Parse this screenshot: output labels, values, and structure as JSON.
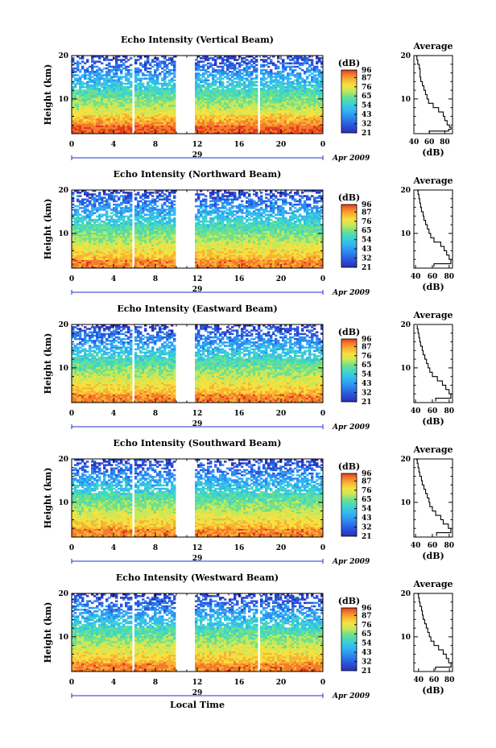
{
  "chart_data": [
    {
      "type": "heatmap",
      "title": "Echo Intensity (Vertical Beam)",
      "ylabel": "Height (km)",
      "yticks": [
        "10",
        "20"
      ],
      "ylim": [
        2,
        20
      ],
      "xticks": [
        "0",
        "4",
        "8",
        "12",
        "16",
        "20",
        "0"
      ],
      "xlim": [
        0,
        24
      ],
      "day_label": "29",
      "month_label": "Apr 2009",
      "data_gaps_hours": [
        [
          5.8,
          6.05
        ],
        [
          9.9,
          11.7
        ],
        [
          17.85,
          18.1
        ]
      ],
      "colorbar": {
        "unit": "(dB)",
        "ticks": [
          "96",
          "87",
          "76",
          "65",
          "54",
          "43",
          "32",
          "21"
        ],
        "range": [
          21,
          96
        ]
      },
      "profile": {
        "title": "Average",
        "xlabel": "(dB)",
        "xticks": [
          "40",
          "60",
          "80"
        ],
        "xlim": [
          40,
          90
        ],
        "yticks": [
          "10",
          "20"
        ],
        "ylim": [
          2,
          20
        ],
        "height_km": [
          2.2,
          2.6,
          3.0,
          3.5,
          4.0,
          5.0,
          6.0,
          7.0,
          8.0,
          9.0,
          10.0,
          11.0,
          12.0,
          13.0,
          14.0,
          15.0,
          16.0,
          17.0,
          18.0,
          19.0,
          19.8
        ],
        "db": [
          60,
          85,
          88,
          86,
          83,
          80,
          78,
          72,
          65,
          59,
          57,
          55,
          53,
          51,
          49,
          48,
          48,
          47,
          45,
          44,
          43
        ]
      }
    },
    {
      "type": "heatmap",
      "title": "Echo Intensity (Northward Beam)",
      "ylabel": "Height (km)",
      "yticks": [
        "10",
        "20"
      ],
      "ylim": [
        2,
        20
      ],
      "xticks": [
        "0",
        "4",
        "8",
        "12",
        "16",
        "20",
        "0"
      ],
      "xlim": [
        0,
        24
      ],
      "day_label": "29",
      "month_label": "Apr 2009",
      "data_gaps_hours": [
        [
          5.8,
          6.05
        ],
        [
          9.9,
          11.7
        ]
      ],
      "colorbar": {
        "unit": "(dB)",
        "ticks": [
          "96",
          "87",
          "76",
          "65",
          "54",
          "43",
          "32",
          "21"
        ],
        "range": [
          21,
          96
        ]
      },
      "profile": {
        "title": "Average",
        "xlabel": "(dB)",
        "xticks": [
          "40",
          "60",
          "80"
        ],
        "xlim": [
          38,
          84
        ],
        "yticks": [
          "10",
          "20"
        ],
        "ylim": [
          2,
          20
        ],
        "height_km": [
          2.3,
          3.0,
          4.0,
          5.0,
          6.0,
          7.0,
          8.0,
          9.0,
          10.0,
          11.0,
          12.0,
          13.0,
          14.0,
          15.0,
          16.0,
          17.0,
          18.0,
          19.0,
          19.8
        ],
        "db": [
          62,
          82,
          80,
          77,
          74,
          70,
          62,
          58,
          56,
          54,
          52,
          50,
          49,
          47,
          46,
          45,
          44,
          43,
          42
        ]
      }
    },
    {
      "type": "heatmap",
      "title": "Echo Intensity (Eastward Beam)",
      "ylabel": "Height (km)",
      "yticks": [
        "10",
        "20"
      ],
      "ylim": [
        2,
        20
      ],
      "xticks": [
        "0",
        "4",
        "8",
        "12",
        "16",
        "20",
        "0"
      ],
      "xlim": [
        0,
        24
      ],
      "day_label": "29",
      "month_label": "Apr 2009",
      "data_gaps_hours": [
        [
          5.8,
          6.05
        ],
        [
          9.9,
          11.7
        ]
      ],
      "colorbar": {
        "unit": "(dB)",
        "ticks": [
          "96",
          "87",
          "76",
          "65",
          "54",
          "43",
          "32",
          "21"
        ],
        "range": [
          21,
          96
        ]
      },
      "profile": {
        "title": "Average",
        "xlabel": "(dB)",
        "xticks": [
          "40",
          "60",
          "80"
        ],
        "xlim": [
          38,
          84
        ],
        "yticks": [
          "10",
          "20"
        ],
        "ylim": [
          2,
          20
        ],
        "height_km": [
          2.3,
          3.0,
          4.0,
          5.0,
          6.0,
          7.0,
          8.0,
          9.0,
          10.0,
          11.0,
          12.0,
          13.0,
          14.0,
          15.0,
          16.0,
          17.0,
          18.0,
          19.0,
          19.8
        ],
        "db": [
          64,
          82,
          80,
          76,
          72,
          66,
          60,
          57,
          55,
          53,
          51,
          49,
          48,
          46,
          45,
          44,
          43,
          42,
          42
        ]
      }
    },
    {
      "type": "heatmap",
      "title": "Echo Intensity (Southward Beam)",
      "ylabel": "Height (km)",
      "yticks": [
        "10",
        "20"
      ],
      "ylim": [
        2,
        20
      ],
      "xticks": [
        "0",
        "4",
        "8",
        "12",
        "16",
        "20",
        "0"
      ],
      "xlim": [
        0,
        24
      ],
      "day_label": "29",
      "month_label": "Apr 2009",
      "data_gaps_hours": [
        [
          5.8,
          6.05
        ],
        [
          9.9,
          11.7
        ]
      ],
      "colorbar": {
        "unit": "(dB)",
        "ticks": [
          "96",
          "87",
          "76",
          "65",
          "54",
          "43",
          "32",
          "21"
        ],
        "range": [
          21,
          96
        ]
      },
      "profile": {
        "title": "Average",
        "xlabel": "(dB)",
        "xticks": [
          "40",
          "60",
          "80"
        ],
        "xlim": [
          38,
          84
        ],
        "yticks": [
          "10",
          "20"
        ],
        "ylim": [
          2,
          20
        ],
        "height_km": [
          2.3,
          3.0,
          4.0,
          5.0,
          6.0,
          7.0,
          8.0,
          9.0,
          10.0,
          11.0,
          12.0,
          13.0,
          14.0,
          15.0,
          16.0,
          17.0,
          18.0,
          19.0,
          19.8
        ],
        "db": [
          65,
          82,
          79,
          73,
          70,
          64,
          60,
          57,
          56,
          54,
          52,
          50,
          48,
          47,
          45,
          44,
          43,
          42,
          41
        ]
      }
    },
    {
      "type": "heatmap",
      "title": "Echo Intensity (Westward Beam)",
      "ylabel": "Height (km)",
      "yticks": [
        "10",
        "20"
      ],
      "ylim": [
        2,
        20
      ],
      "xticks": [
        "0",
        "4",
        "8",
        "12",
        "16",
        "20",
        "0"
      ],
      "xlim": [
        0,
        24
      ],
      "day_label": "29",
      "month_label": "Apr 2009",
      "data_gaps_hours": [
        [
          5.8,
          6.05
        ],
        [
          9.9,
          11.7
        ],
        [
          17.8,
          18.05
        ]
      ],
      "colorbar": {
        "unit": "(dB)",
        "ticks": [
          "96",
          "87",
          "76",
          "65",
          "54",
          "43",
          "32",
          "21"
        ],
        "range": [
          21,
          96
        ]
      },
      "profile": {
        "title": "Average",
        "xlabel": "(dB)",
        "xticks": [
          "40",
          "60",
          "80"
        ],
        "xlim": [
          34,
          84
        ],
        "yticks": [
          "10",
          "20"
        ],
        "ylim": [
          2,
          20
        ],
        "height_km": [
          2.3,
          3.0,
          4.0,
          5.0,
          6.0,
          7.0,
          8.0,
          9.0,
          10.0,
          11.0,
          12.0,
          13.0,
          14.0,
          15.0,
          16.0,
          17.0,
          18.0,
          19.0,
          19.8
        ],
        "db": [
          62,
          82,
          79,
          76,
          72,
          66,
          60,
          56,
          54,
          52,
          50,
          48,
          46,
          45,
          44,
          42,
          41,
          40,
          39
        ]
      }
    }
  ],
  "footer": {
    "xlabel": "Local Time"
  },
  "colors": {
    "scale": [
      "#2b2fb5",
      "#2a56dc",
      "#2d8cf0",
      "#33b8f2",
      "#3fd6c8",
      "#70e08a",
      "#c8e85a",
      "#f7e13f",
      "#f9b233",
      "#f47b2a",
      "#e23a1f"
    ],
    "axis": "#000000",
    "date_line": "#2233cc"
  }
}
